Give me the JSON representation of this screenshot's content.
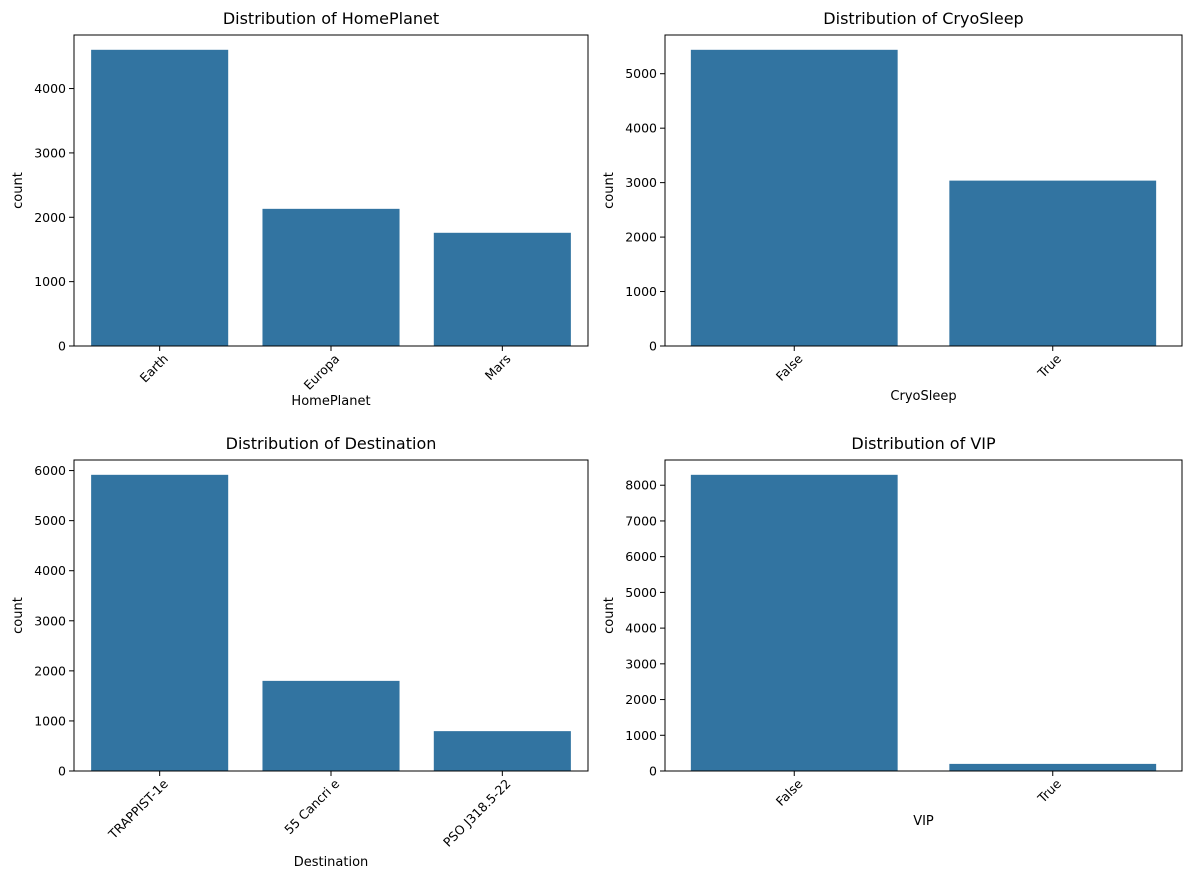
{
  "colors": {
    "bar": "#3274a1",
    "axis": "#000000"
  },
  "chart_data": [
    {
      "type": "bar",
      "title": "Distribution of HomePlanet",
      "xlabel": "HomePlanet",
      "ylabel": "count",
      "categories": [
        "Earth",
        "Europa",
        "Mars"
      ],
      "values": [
        4602,
        2131,
        1759
      ],
      "ylim": [
        0,
        4832
      ],
      "yticks": [
        0,
        1000,
        2000,
        3000,
        4000
      ],
      "grid": false
    },
    {
      "type": "bar",
      "title": "Distribution of CryoSleep",
      "xlabel": "CryoSleep",
      "ylabel": "count",
      "categories": [
        "False",
        "True"
      ],
      "values": [
        5439,
        3037
      ],
      "ylim": [
        0,
        5711
      ],
      "yticks": [
        0,
        1000,
        2000,
        3000,
        4000,
        5000
      ],
      "grid": false
    },
    {
      "type": "bar",
      "title": "Distribution of Destination",
      "xlabel": "Destination",
      "ylabel": "count",
      "categories": [
        "TRAPPIST-1e",
        "55 Cancri e",
        "PSO J318.5-22"
      ],
      "values": [
        5915,
        1800,
        796
      ],
      "ylim": [
        0,
        6211
      ],
      "yticks": [
        0,
        1000,
        2000,
        3000,
        4000,
        5000,
        6000
      ],
      "grid": false
    },
    {
      "type": "bar",
      "title": "Distribution of VIP",
      "xlabel": "VIP",
      "ylabel": "count",
      "categories": [
        "False",
        "True"
      ],
      "values": [
        8291,
        199
      ],
      "ylim": [
        0,
        8706
      ],
      "yticks": [
        0,
        1000,
        2000,
        3000,
        4000,
        5000,
        6000,
        7000,
        8000
      ],
      "grid": false
    }
  ]
}
